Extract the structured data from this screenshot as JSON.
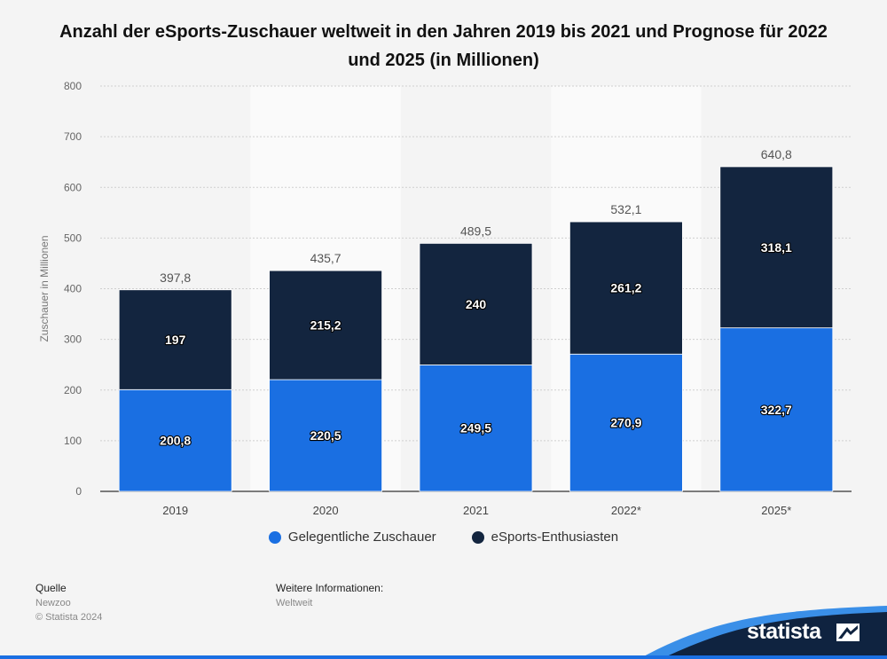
{
  "chart_data": {
    "type": "bar",
    "stacked": true,
    "title": "Anzahl der eSports-Zuschauer weltweit in den Jahren 2019 bis 2021 und Prognose für 2022 und 2025 (in Millionen)",
    "xlabel": "",
    "ylabel": "Zuschauer in Millionen",
    "ylim": [
      0,
      800
    ],
    "yticks": [
      "0",
      "100",
      "200",
      "300",
      "400",
      "500",
      "600",
      "700",
      "800"
    ],
    "categories": [
      "2019",
      "2020",
      "2021",
      "2022*",
      "2025*"
    ],
    "series": [
      {
        "name": "Gelegentliche Zuschauer",
        "color": "#1a6fe2",
        "values": [
          200.8,
          220.5,
          249.5,
          270.9,
          322.7
        ],
        "labels": [
          "200,8",
          "220,5",
          "249,5",
          "270,9",
          "322,7"
        ]
      },
      {
        "name": "eSports-Enthusiasten",
        "color": "#13253f",
        "values": [
          197,
          215.2,
          240,
          261.2,
          318.1
        ],
        "labels": [
          "197",
          "215,2",
          "240",
          "261,2",
          "318,1"
        ]
      }
    ],
    "totals": [
      397.8,
      435.7,
      489.5,
      532.1,
      640.8
    ],
    "total_labels": [
      "397,8",
      "435,7",
      "489,5",
      "532,1",
      "640,8"
    ],
    "grid": true,
    "legend_position": "bottom"
  },
  "footer": {
    "source_heading": "Quelle",
    "source": "Newzoo",
    "copyright": "© Statista 2024",
    "info_heading": "Weitere Informationen:",
    "info": "Weltweit",
    "brand": "statista"
  }
}
